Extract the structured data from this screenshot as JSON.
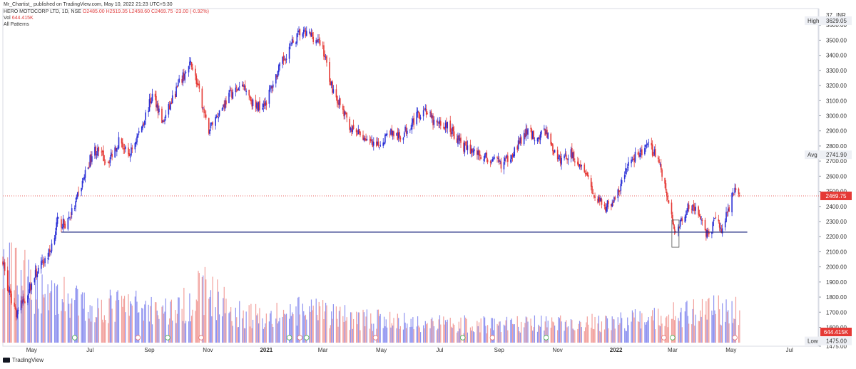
{
  "header": {
    "publisher": "Mr_Chartist_ published on TradingView.com, May 10, 2022 21:23 UTC+5:30",
    "symbol": "HERO MOTOCORP LTD, 1D, NSE",
    "ohlc": "O2485.00 H2519.35 L2458.60 C2469.75 -23.00 (-0.92%)",
    "vol_label": "Vol",
    "vol_value": "644.415K",
    "indicator": "All Patterns"
  },
  "footer": {
    "brand": "TradingView"
  },
  "colors": {
    "up": "#2a2fd6",
    "down": "#e53935",
    "vol_up": "#8f93f0",
    "vol_down": "#f2a09c",
    "level": "#1a237e",
    "price_badge": "#e53935"
  },
  "chart_data": {
    "type": "candlestick",
    "currency": "INR",
    "price_axis": {
      "ticks": [
        1475.0,
        1600.0,
        1700.0,
        1800.0,
        1900.0,
        2000.0,
        2100.0,
        2200.0,
        2300.0,
        2400.0,
        2500.0,
        2600.0,
        2700.0,
        2800.0,
        2900.0,
        3000.0,
        3100.0,
        3200.0,
        3300.0,
        3400.0,
        3500.0,
        3600.0
      ],
      "top_label": "37",
      "unit_label": "INR"
    },
    "time_axis": [
      "May",
      "Jul",
      "Sep",
      "Nov",
      "2021",
      "Mar",
      "May",
      "Jul",
      "Sep",
      "Nov",
      "2022",
      "Mar",
      "May",
      "Jul"
    ],
    "markers": [
      {
        "label": "High",
        "value": "3629.05"
      },
      {
        "label": "Avg",
        "value": "2741.90"
      },
      {
        "label": "Low",
        "value": "1475.00"
      }
    ],
    "last_price": "2469.75",
    "last_volume": "644.415K",
    "support_level": 2230,
    "price_path": [
      [
        "2020-04-01",
        2050
      ],
      [
        "2020-04-06",
        1850
      ],
      [
        "2020-04-15",
        1700
      ],
      [
        "2020-04-25",
        1800
      ],
      [
        "2020-05-05",
        1950
      ],
      [
        "2020-05-20",
        2100
      ],
      [
        "2020-05-28",
        2300
      ],
      [
        "2020-06-05",
        2280
      ],
      [
        "2020-06-15",
        2400
      ],
      [
        "2020-06-25",
        2600
      ],
      [
        "2020-07-05",
        2780
      ],
      [
        "2020-07-20",
        2700
      ],
      [
        "2020-08-01",
        2850
      ],
      [
        "2020-08-10",
        2720
      ],
      [
        "2020-08-25",
        2950
      ],
      [
        "2020-09-05",
        3150
      ],
      [
        "2020-09-15",
        2950
      ],
      [
        "2020-10-01",
        3200
      ],
      [
        "2020-10-15",
        3350
      ],
      [
        "2020-10-25",
        3100
      ],
      [
        "2020-11-01",
        2900
      ],
      [
        "2020-11-10",
        3000
      ],
      [
        "2020-11-25",
        3150
      ],
      [
        "2020-12-10",
        3200
      ],
      [
        "2020-12-20",
        3050
      ],
      [
        "2021-01-01",
        3100
      ],
      [
        "2021-01-10",
        3250
      ],
      [
        "2021-01-25",
        3450
      ],
      [
        "2021-02-05",
        3550
      ],
      [
        "2021-02-18",
        3530
      ],
      [
        "2021-03-01",
        3450
      ],
      [
        "2021-03-10",
        3200
      ],
      [
        "2021-03-20",
        3050
      ],
      [
        "2021-04-01",
        2900
      ],
      [
        "2021-04-15",
        2850
      ],
      [
        "2021-04-25",
        2780
      ],
      [
        "2021-05-10",
        2900
      ],
      [
        "2021-05-20",
        2850
      ],
      [
        "2021-06-01",
        2950
      ],
      [
        "2021-06-15",
        3050
      ],
      [
        "2021-06-25",
        2950
      ],
      [
        "2021-07-10",
        2930
      ],
      [
        "2021-07-25",
        2800
      ],
      [
        "2021-08-10",
        2750
      ],
      [
        "2021-08-25",
        2700
      ],
      [
        "2021-09-05",
        2680
      ],
      [
        "2021-09-20",
        2800
      ],
      [
        "2021-10-01",
        2900
      ],
      [
        "2021-10-10",
        2850
      ],
      [
        "2021-10-20",
        2900
      ],
      [
        "2021-11-01",
        2700
      ],
      [
        "2021-11-15",
        2750
      ],
      [
        "2021-11-30",
        2650
      ],
      [
        "2021-12-10",
        2450
      ],
      [
        "2021-12-20",
        2400
      ],
      [
        "2022-01-01",
        2450
      ],
      [
        "2022-01-15",
        2700
      ],
      [
        "2022-01-25",
        2750
      ],
      [
        "2022-02-05",
        2800
      ],
      [
        "2022-02-15",
        2700
      ],
      [
        "2022-02-24",
        2450
      ],
      [
        "2022-03-02",
        2250
      ],
      [
        "2022-03-10",
        2300
      ],
      [
        "2022-03-20",
        2420
      ],
      [
        "2022-03-28",
        2350
      ],
      [
        "2022-04-05",
        2200
      ],
      [
        "2022-04-15",
        2300
      ],
      [
        "2022-04-22",
        2250
      ],
      [
        "2022-04-29",
        2400
      ],
      [
        "2022-05-05",
        2530
      ],
      [
        "2022-05-10",
        2470
      ]
    ],
    "volume_path": [
      [
        "2020-04-01",
        900
      ],
      [
        "2020-04-15",
        800
      ],
      [
        "2020-05-01",
        700
      ],
      [
        "2020-06-01",
        550
      ],
      [
        "2020-07-01",
        400
      ],
      [
        "2020-08-01",
        450
      ],
      [
        "2020-09-01",
        420
      ],
      [
        "2020-10-01",
        380
      ],
      [
        "2020-10-28",
        650
      ],
      [
        "2020-12-01",
        350
      ],
      [
        "2021-01-01",
        300
      ],
      [
        "2021-02-10",
        380
      ],
      [
        "2021-03-10",
        330
      ],
      [
        "2021-04-15",
        280
      ],
      [
        "2021-06-01",
        240
      ],
      [
        "2021-08-01",
        220
      ],
      [
        "2021-10-01",
        220
      ],
      [
        "2021-12-01",
        230
      ],
      [
        "2022-01-15",
        260
      ],
      [
        "2022-03-01",
        330
      ],
      [
        "2022-04-05",
        380
      ],
      [
        "2022-05-10",
        420
      ]
    ],
    "time_range": [
      "2020-04-01",
      "2022-07-31"
    ]
  }
}
